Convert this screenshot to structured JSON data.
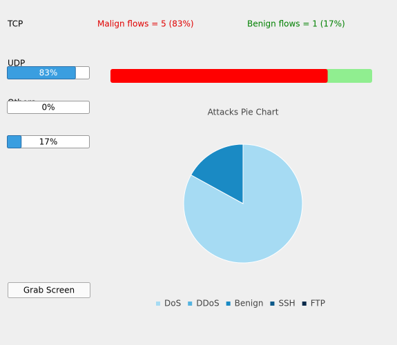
{
  "labels": {
    "tcp": "TCP",
    "udp": "UDP",
    "others": "Others"
  },
  "progress_bars": [
    {
      "value": 83,
      "label": "83%"
    },
    {
      "value": 0,
      "label": "0%"
    },
    {
      "value": 17,
      "label": "17%"
    }
  ],
  "flows": {
    "malign_text": "Malign flows = 5 (83%)",
    "benign_text": "Benign flows = 1 (17%)",
    "malign_value": 83,
    "benign_value": 17,
    "malign_color": "#ff0000",
    "benign_color": "#90ee90"
  },
  "chart_data": {
    "type": "pie",
    "title": "Attacks Pie Chart",
    "categories": [
      "DoS",
      "DDoS",
      "Benign",
      "SSH",
      "FTP"
    ],
    "values": [
      83,
      0,
      17,
      0,
      0
    ],
    "colors": [
      "#a6dbf3",
      "#56b4e0",
      "#1a8ac4",
      "#0e5a8a",
      "#0a2a4a"
    ]
  },
  "button": "Grab Screen"
}
